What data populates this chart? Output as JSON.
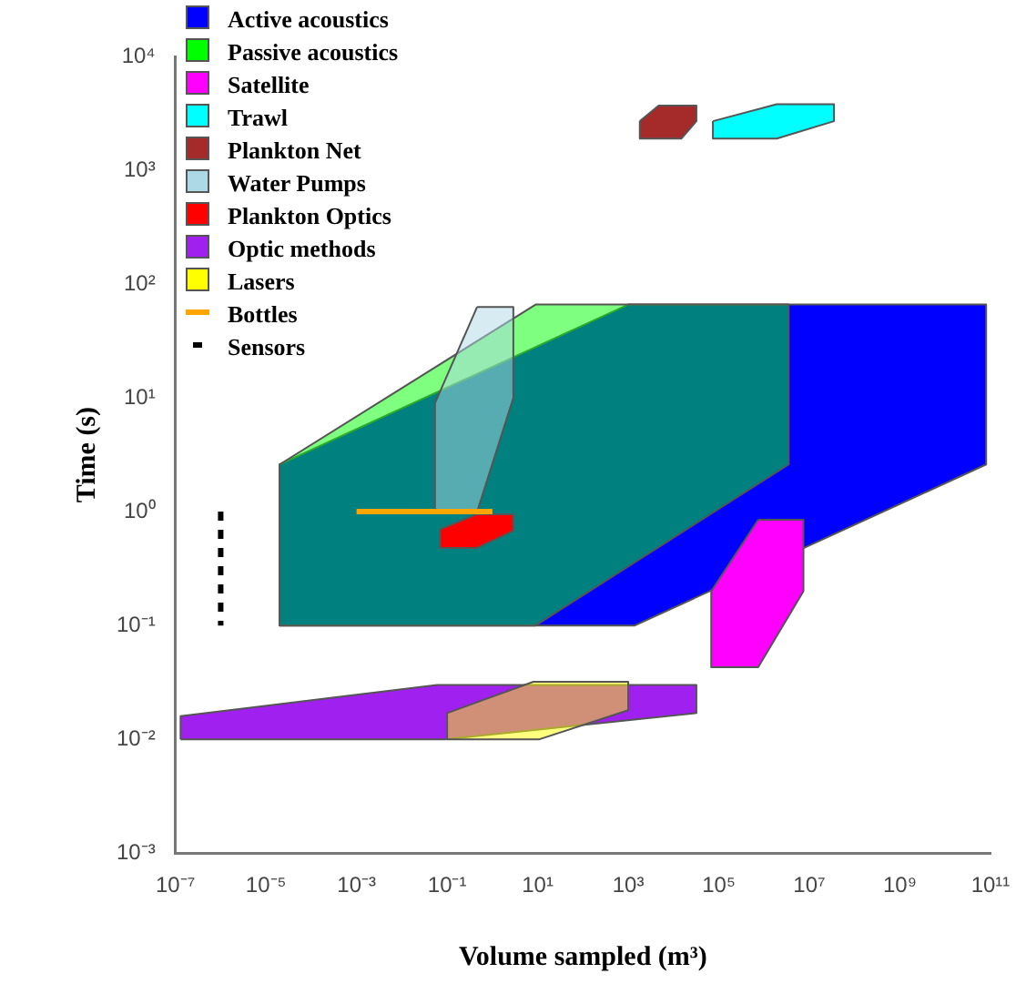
{
  "chart_data": {
    "type": "area",
    "xlabel": "Volume sampled (m³)",
    "ylabel": "Time (s)",
    "log": "xy",
    "legend": "top left",
    "marker": "none",
    "xlim": [
      1e-07,
      100000000000.0
    ],
    "ylim": [
      0.001,
      10000
    ],
    "xticks": [
      {
        "value": 1e-07,
        "label": "10⁻⁷"
      },
      {
        "value": 1e-05,
        "label": "10⁻⁵"
      },
      {
        "value": 0.001,
        "label": "10⁻³"
      },
      {
        "value": 0.1,
        "label": "10⁻¹"
      },
      {
        "value": 10,
        "label": "10¹"
      },
      {
        "value": 1000,
        "label": "10³"
      },
      {
        "value": 100000,
        "label": "10⁵"
      },
      {
        "value": 10000000,
        "label": "10⁷"
      },
      {
        "value": 1000000000,
        "label": "10⁹"
      },
      {
        "value": 100000000000,
        "label": "10¹¹"
      }
    ],
    "yticks": [
      {
        "value": 0.001,
        "label": "10⁻³"
      },
      {
        "value": 0.01,
        "label": "10⁻²"
      },
      {
        "value": 0.1,
        "label": "10⁻¹"
      },
      {
        "value": 1,
        "label": "10⁰"
      },
      {
        "value": 10,
        "label": "10¹"
      },
      {
        "value": 100,
        "label": "10²"
      },
      {
        "value": 1000,
        "label": "10³"
      },
      {
        "value": 10000,
        "label": "10⁴"
      }
    ],
    "series": [
      {
        "name": "Active acoustics",
        "color": "#0000ff",
        "x": [
          2e-05,
          1400,
          80000000000.0,
          80000000000.0,
          1000,
          2e-05,
          2e-05
        ],
        "values": [
          0.1,
          0.1,
          2.6,
          66,
          66,
          2.6,
          0.1
        ]
      },
      {
        "name": "Passive acoustics",
        "color": "#00ff00",
        "x": [
          2e-05,
          9,
          3500000.0,
          3500000.0,
          9,
          2e-05,
          2e-05
        ],
        "values": [
          0.1,
          0.1,
          2.6,
          66,
          66,
          2.6,
          0.1
        ]
      },
      {
        "name": "Satellite",
        "color": "#ff00ff",
        "x": [
          740000.0,
          7400000.0,
          7400000.0,
          740000.0,
          68000.0,
          68000.0,
          740000.0
        ],
        "values": [
          0.85,
          0.85,
          0.2,
          0.043,
          0.043,
          0.2,
          0.85
        ]
      },
      {
        "name": "Trawl",
        "color": "#00ffff",
        "x": [
          74000.0,
          1900000.0,
          35000000.0,
          35000000.0,
          1900000.0,
          74000.0,
          74000.0
        ],
        "values": [
          2700,
          3800,
          3800,
          2700,
          1900,
          1900,
          2700
        ]
      },
      {
        "name": "Plankton Net",
        "color": "#a52a2a",
        "x": [
          1800,
          4700,
          32000,
          32000,
          15000,
          1800,
          1800
        ],
        "values": [
          2700,
          3700,
          3700,
          2700,
          1900,
          1900,
          2700
        ]
      },
      {
        "name": "Water Pumps",
        "color": "#add8e6",
        "x": [
          0.46,
          2.9,
          2.9,
          0.46,
          0.054,
          0.054,
          0.46
        ],
        "values": [
          63,
          63,
          10,
          1,
          1,
          9,
          63
        ]
      },
      {
        "name": "Plankton Optics",
        "color": "#ff0000",
        "x": [
          0.07,
          0.46,
          2.9,
          2.9,
          0.46,
          0.07,
          0.07
        ],
        "values": [
          0.7,
          0.95,
          0.95,
          0.68,
          0.48,
          0.48,
          0.7
        ]
      },
      {
        "name": "Optic methods",
        "color": "#a020f0",
        "x": [
          1.3e-07,
          1.3e-07,
          0.06,
          32000,
          32000,
          0.09,
          1.3e-07
        ],
        "values": [
          0.01,
          0.016,
          0.03,
          0.03,
          0.017,
          0.01,
          0.01
        ]
      },
      {
        "name": "Lasers",
        "color": "#ffff00",
        "x": [
          0.1,
          0.1,
          8,
          1000,
          1000,
          11,
          0.1
        ],
        "values": [
          0.01,
          0.017,
          0.032,
          0.032,
          0.018,
          0.01,
          0.01
        ]
      },
      {
        "name": "Bottles",
        "type": "line",
        "color": "#ffa500",
        "x": [
          0.001,
          1
        ],
        "values": [
          1,
          1
        ]
      },
      {
        "name": "Sensors",
        "type": "line",
        "line_style": "dashed",
        "color": "#000000",
        "x": [
          1e-06,
          1e-06
        ],
        "values": [
          1,
          0.1
        ]
      }
    ]
  }
}
